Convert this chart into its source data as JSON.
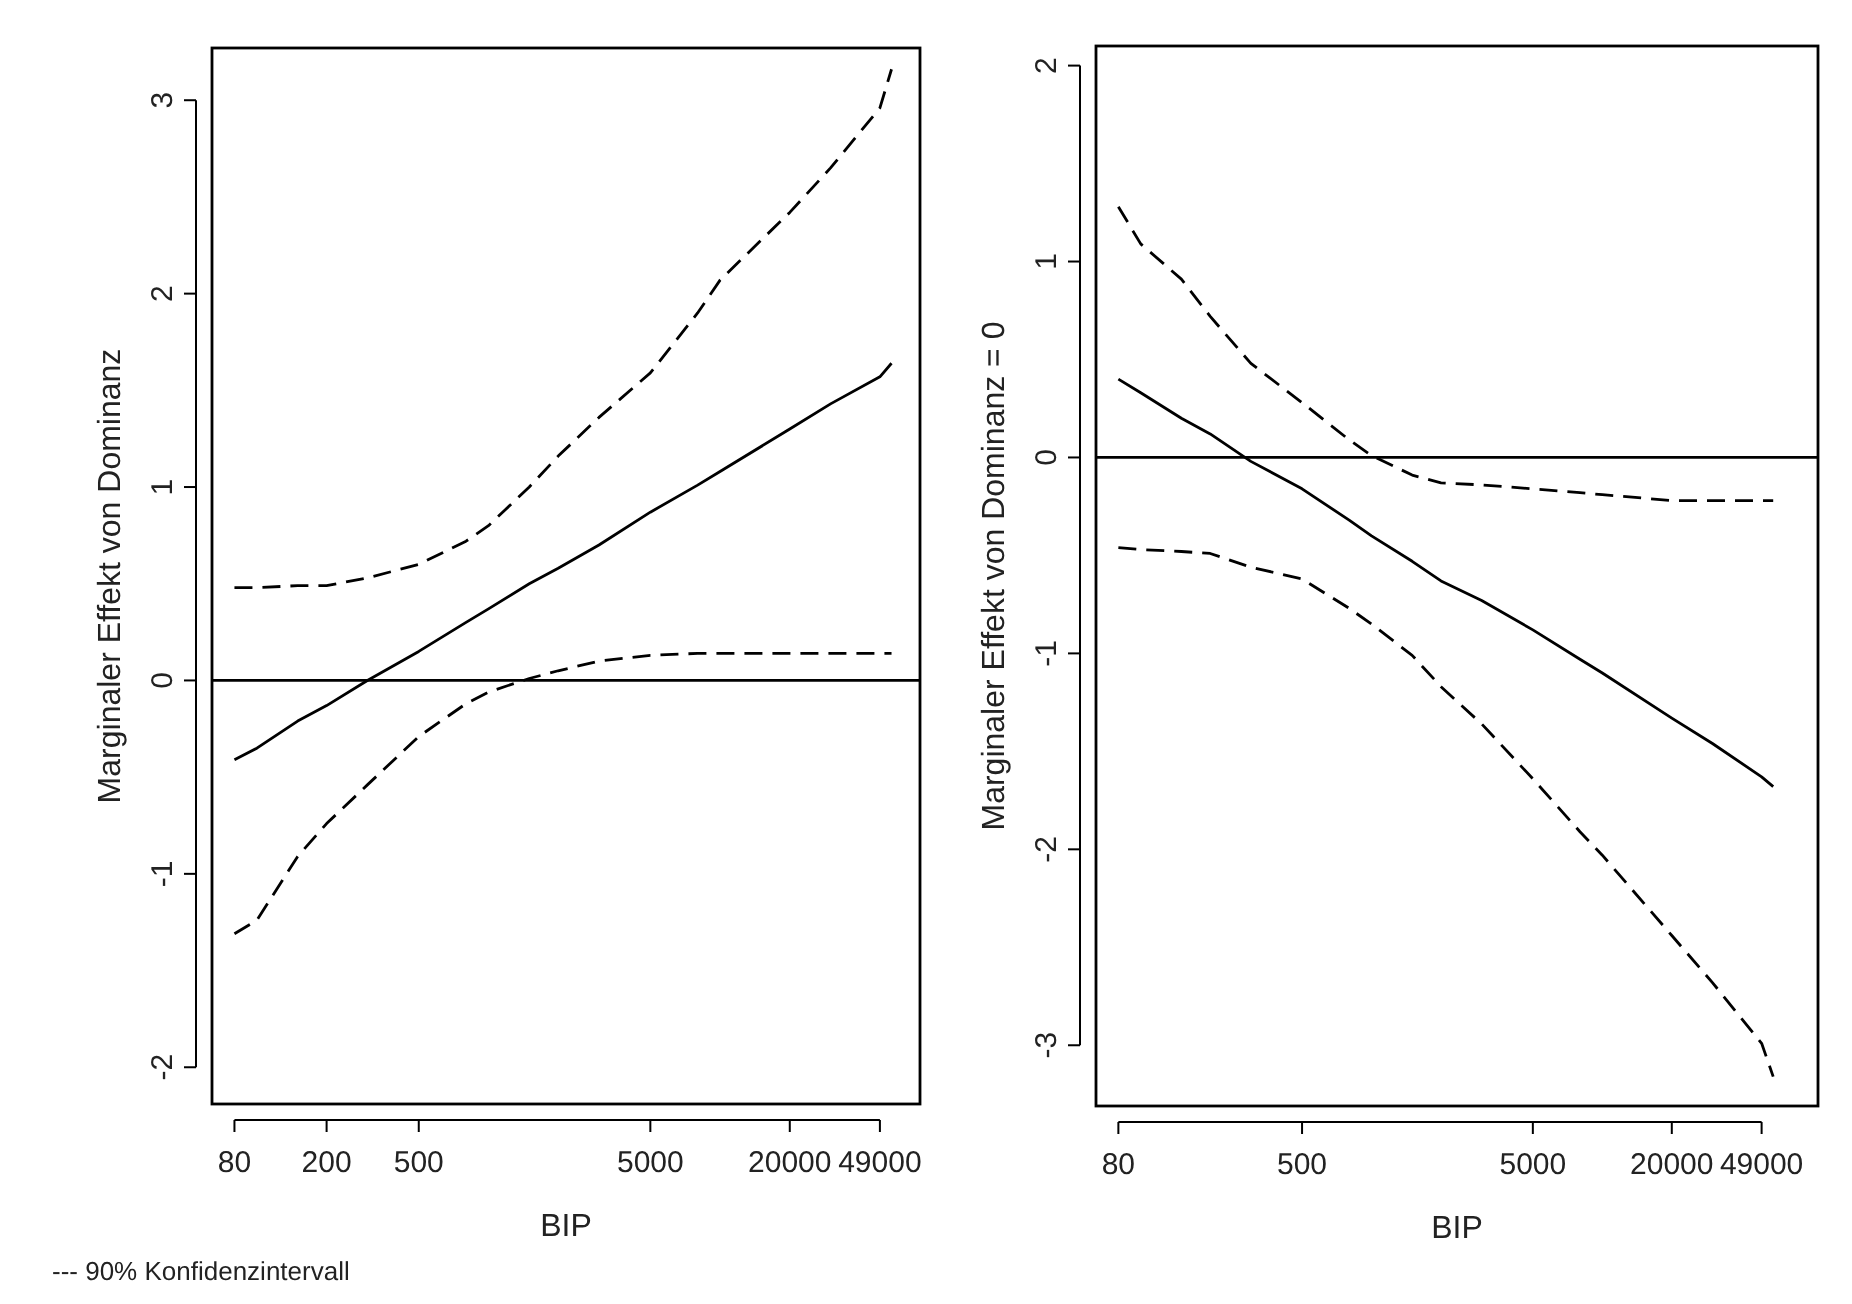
{
  "chart_data": [
    {
      "type": "line",
      "xlabel": "BIP",
      "ylabel": "Marginaler Effekt von Dominanz",
      "log": "x",
      "xlim": [
        64,
        73000
      ],
      "xticks": [
        80,
        200,
        500,
        5000,
        20000,
        49000
      ],
      "ylim": [
        -2.19,
        3.27
      ],
      "yticks": [
        -2,
        -1,
        0,
        1,
        2,
        3
      ],
      "grid": false,
      "marker": "none",
      "ref_lines": [
        {
          "axis": "y",
          "value": 0,
          "color": "#000000",
          "line_style": "solid"
        }
      ],
      "annotations": [
        "--- 90% Konfidenzintervall"
      ],
      "x": [
        80,
        100,
        150,
        200,
        300,
        500,
        800,
        1000,
        1500,
        2000,
        3000,
        5000,
        8000,
        10000,
        20000,
        30000,
        49000,
        55000
      ],
      "series": [
        {
          "color": "#000000",
          "line_style": "solid",
          "values": [
            -0.41,
            -0.35,
            -0.21,
            -0.13,
            0.0,
            0.15,
            0.3,
            0.37,
            0.5,
            0.58,
            0.7,
            0.87,
            1.01,
            1.08,
            1.3,
            1.43,
            1.57,
            1.64
          ]
        },
        {
          "color": "#000000",
          "line_style": "dashed",
          "values": [
            0.48,
            0.48,
            0.49,
            0.49,
            0.53,
            0.6,
            0.72,
            0.8,
            1.0,
            1.16,
            1.36,
            1.59,
            1.9,
            2.07,
            2.42,
            2.65,
            2.96,
            3.16
          ]
        },
        {
          "color": "#000000",
          "line_style": "dashed",
          "values": [
            -1.31,
            -1.24,
            -0.91,
            -0.74,
            -0.54,
            -0.29,
            -0.12,
            -0.06,
            0.01,
            0.05,
            0.1,
            0.13,
            0.14,
            0.14,
            0.14,
            0.14,
            0.14,
            0.14
          ]
        }
      ]
    },
    {
      "type": "line",
      "xlabel": "BIP",
      "ylabel": "Marginaler Effekt von Dominanz = 0",
      "log": "x",
      "xlim": [
        64,
        86000
      ],
      "xticks": [
        80,
        500,
        5000,
        20000,
        49000
      ],
      "ylim": [
        -3.31,
        2.1
      ],
      "yticks": [
        -3,
        -2,
        -1,
        0,
        1,
        2
      ],
      "grid": false,
      "marker": "none",
      "ref_lines": [
        {
          "axis": "y",
          "value": 0,
          "color": "#000000",
          "line_style": "solid"
        }
      ],
      "x": [
        80,
        100,
        150,
        200,
        300,
        500,
        800,
        1000,
        1500,
        2000,
        3000,
        5000,
        8000,
        10000,
        20000,
        30000,
        49000,
        55000
      ],
      "series": [
        {
          "color": "#000000",
          "line_style": "solid",
          "values": [
            0.4,
            0.33,
            0.2,
            0.12,
            -0.02,
            -0.16,
            -0.32,
            -0.4,
            -0.53,
            -0.63,
            -0.73,
            -0.88,
            -1.03,
            -1.1,
            -1.33,
            -1.46,
            -1.63,
            -1.68
          ]
        },
        {
          "color": "#000000",
          "line_style": "dashed",
          "values": [
            1.28,
            1.09,
            0.91,
            0.72,
            0.48,
            0.28,
            0.09,
            0.01,
            -0.09,
            -0.13,
            -0.14,
            -0.16,
            -0.18,
            -0.19,
            -0.22,
            -0.22,
            -0.22,
            -0.22
          ]
        },
        {
          "color": "#000000",
          "line_style": "dashed",
          "values": [
            -0.46,
            -0.47,
            -0.48,
            -0.49,
            -0.56,
            -0.62,
            -0.77,
            -0.85,
            -1.01,
            -1.17,
            -1.36,
            -1.64,
            -1.91,
            -2.03,
            -2.44,
            -2.68,
            -2.99,
            -3.16
          ]
        }
      ]
    }
  ]
}
